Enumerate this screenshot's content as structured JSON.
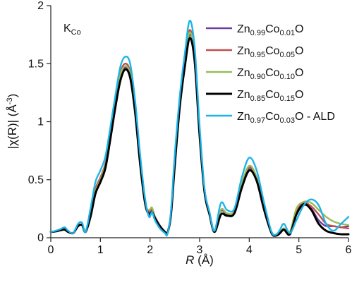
{
  "chart_data": {
    "type": "line",
    "annotation": {
      "main": "K",
      "sub": "Co"
    },
    "xlabel": {
      "italic": "R",
      "rest": " (Å)"
    },
    "ylabel": {
      "pre": "|χ(R)| (Å",
      "sup": "-3",
      "post": ")"
    },
    "xlim": [
      0,
      6
    ],
    "ylim": [
      0,
      2
    ],
    "xticks": [
      "0",
      "1",
      "2",
      "3",
      "4",
      "5",
      "6"
    ],
    "yticks": [
      "0",
      "0.5",
      "1",
      "1.5",
      "2"
    ],
    "grid": false,
    "legend_position": "top-right",
    "series": [
      {
        "legend": [
          {
            "t": "Zn"
          },
          {
            "t": "0.99",
            "sub": true
          },
          {
            "t": "Co"
          },
          {
            "t": "0.01",
            "sub": true
          },
          {
            "t": "O"
          }
        ],
        "color": "#6a3fa0",
        "x": [
          0,
          0.1,
          0.2,
          0.28,
          0.35,
          0.45,
          0.55,
          0.63,
          0.7,
          0.8,
          0.9,
          1.0,
          1.1,
          1.2,
          1.3,
          1.4,
          1.5,
          1.6,
          1.7,
          1.8,
          1.9,
          1.98,
          2.04,
          2.1,
          2.2,
          2.3,
          2.35,
          2.42,
          2.5,
          2.6,
          2.7,
          2.8,
          2.9,
          3.0,
          3.1,
          3.2,
          3.3,
          3.43,
          3.55,
          3.7,
          3.85,
          4.0,
          4.15,
          4.3,
          4.45,
          4.55,
          4.62,
          4.7,
          4.82,
          4.95,
          5.1,
          5.25,
          5.4,
          5.55,
          5.7,
          5.85,
          6.0
        ],
        "y": [
          0.05,
          0.055,
          0.065,
          0.07,
          0.05,
          0.04,
          0.1,
          0.11,
          0.05,
          0.2,
          0.4,
          0.5,
          0.62,
          0.88,
          1.15,
          1.38,
          1.47,
          1.4,
          1.1,
          0.65,
          0.3,
          0.21,
          0.24,
          0.18,
          0.1,
          0.05,
          0.04,
          0.2,
          0.65,
          1.15,
          1.5,
          1.75,
          1.55,
          0.9,
          0.4,
          0.2,
          0.05,
          0.23,
          0.2,
          0.22,
          0.45,
          0.6,
          0.5,
          0.25,
          0.05,
          0.02,
          0.04,
          0.08,
          0.03,
          0.2,
          0.28,
          0.25,
          0.15,
          0.1,
          0.1,
          0.09,
          0.1
        ]
      },
      {
        "legend": [
          {
            "t": "Zn"
          },
          {
            "t": "0.95",
            "sub": true
          },
          {
            "t": "Co"
          },
          {
            "t": "0.05",
            "sub": true
          },
          {
            "t": "O"
          }
        ],
        "color": "#c0504d",
        "x": [
          0,
          0.1,
          0.2,
          0.28,
          0.35,
          0.45,
          0.55,
          0.63,
          0.7,
          0.8,
          0.9,
          1.0,
          1.1,
          1.2,
          1.3,
          1.4,
          1.5,
          1.6,
          1.7,
          1.8,
          1.9,
          1.98,
          2.04,
          2.1,
          2.2,
          2.3,
          2.35,
          2.42,
          2.5,
          2.6,
          2.7,
          2.8,
          2.9,
          3.0,
          3.1,
          3.2,
          3.3,
          3.43,
          3.55,
          3.7,
          3.85,
          4.0,
          4.15,
          4.3,
          4.45,
          4.55,
          4.62,
          4.7,
          4.82,
          4.95,
          5.1,
          5.25,
          5.4,
          5.55,
          5.7,
          5.85,
          6.0
        ],
        "y": [
          0.05,
          0.055,
          0.065,
          0.075,
          0.05,
          0.04,
          0.1,
          0.11,
          0.05,
          0.2,
          0.42,
          0.52,
          0.64,
          0.9,
          1.18,
          1.42,
          1.5,
          1.43,
          1.12,
          0.66,
          0.3,
          0.23,
          0.25,
          0.18,
          0.1,
          0.05,
          0.04,
          0.2,
          0.66,
          1.17,
          1.53,
          1.79,
          1.58,
          0.92,
          0.4,
          0.2,
          0.05,
          0.24,
          0.21,
          0.22,
          0.46,
          0.61,
          0.51,
          0.26,
          0.05,
          0.02,
          0.04,
          0.08,
          0.04,
          0.22,
          0.3,
          0.27,
          0.2,
          0.12,
          0.1,
          0.09,
          0.08
        ]
      },
      {
        "legend": [
          {
            "t": "Zn"
          },
          {
            "t": "0.90",
            "sub": true
          },
          {
            "t": "Co"
          },
          {
            "t": "0.10",
            "sub": true
          },
          {
            "t": "O"
          }
        ],
        "color": "#9bbb59",
        "x": [
          0,
          0.1,
          0.2,
          0.28,
          0.35,
          0.45,
          0.55,
          0.63,
          0.7,
          0.8,
          0.9,
          1.0,
          1.1,
          1.2,
          1.3,
          1.4,
          1.5,
          1.6,
          1.7,
          1.8,
          1.9,
          1.98,
          2.04,
          2.1,
          2.2,
          2.3,
          2.35,
          2.42,
          2.5,
          2.6,
          2.7,
          2.8,
          2.9,
          3.0,
          3.1,
          3.2,
          3.3,
          3.43,
          3.55,
          3.7,
          3.85,
          4.0,
          4.15,
          4.3,
          4.45,
          4.55,
          4.62,
          4.7,
          4.82,
          4.95,
          5.1,
          5.25,
          5.4,
          5.55,
          5.7,
          5.85,
          6.0
        ],
        "y": [
          0.05,
          0.055,
          0.065,
          0.075,
          0.05,
          0.04,
          0.1,
          0.11,
          0.05,
          0.2,
          0.4,
          0.5,
          0.62,
          0.88,
          1.16,
          1.4,
          1.48,
          1.41,
          1.1,
          0.65,
          0.3,
          0.24,
          0.26,
          0.18,
          0.1,
          0.05,
          0.04,
          0.2,
          0.66,
          1.16,
          1.51,
          1.77,
          1.56,
          0.91,
          0.4,
          0.2,
          0.05,
          0.24,
          0.21,
          0.23,
          0.47,
          0.62,
          0.52,
          0.26,
          0.05,
          0.02,
          0.04,
          0.08,
          0.05,
          0.25,
          0.31,
          0.3,
          0.24,
          0.18,
          0.14,
          0.12,
          0.11
        ]
      },
      {
        "legend": [
          {
            "t": "Zn"
          },
          {
            "t": "0.85",
            "sub": true
          },
          {
            "t": "Co"
          },
          {
            "t": "0.15",
            "sub": true
          },
          {
            "t": "O"
          }
        ],
        "color": "#000000",
        "x": [
          0,
          0.1,
          0.2,
          0.28,
          0.35,
          0.45,
          0.55,
          0.63,
          0.7,
          0.8,
          0.9,
          1.0,
          1.1,
          1.2,
          1.3,
          1.4,
          1.5,
          1.6,
          1.7,
          1.8,
          1.9,
          1.98,
          2.04,
          2.1,
          2.2,
          2.3,
          2.35,
          2.42,
          2.5,
          2.6,
          2.7,
          2.8,
          2.9,
          3.0,
          3.1,
          3.2,
          3.3,
          3.43,
          3.55,
          3.7,
          3.85,
          4.0,
          4.15,
          4.3,
          4.45,
          4.55,
          4.62,
          4.7,
          4.82,
          4.95,
          5.1,
          5.25,
          5.4,
          5.55,
          5.7,
          5.85,
          6.0
        ],
        "y": [
          0.05,
          0.055,
          0.065,
          0.07,
          0.05,
          0.04,
          0.1,
          0.11,
          0.05,
          0.18,
          0.38,
          0.48,
          0.6,
          0.85,
          1.12,
          1.35,
          1.45,
          1.38,
          1.08,
          0.64,
          0.3,
          0.2,
          0.22,
          0.17,
          0.1,
          0.05,
          0.04,
          0.19,
          0.63,
          1.13,
          1.47,
          1.72,
          1.52,
          0.88,
          0.39,
          0.2,
          0.05,
          0.2,
          0.19,
          0.21,
          0.43,
          0.58,
          0.49,
          0.24,
          0.04,
          0.02,
          0.04,
          0.07,
          0.03,
          0.2,
          0.29,
          0.24,
          0.12,
          0.06,
          0.04,
          0.03,
          0.03
        ]
      },
      {
        "legend": [
          {
            "t": "Zn"
          },
          {
            "t": "0.97",
            "sub": true
          },
          {
            "t": "Co"
          },
          {
            "t": "0.03",
            "sub": true
          },
          {
            "t": "O - ALD"
          }
        ],
        "color": "#1fb4e8",
        "x": [
          0,
          0.1,
          0.2,
          0.28,
          0.35,
          0.45,
          0.55,
          0.63,
          0.7,
          0.8,
          0.9,
          1.0,
          1.1,
          1.2,
          1.3,
          1.4,
          1.5,
          1.6,
          1.7,
          1.8,
          1.9,
          1.98,
          2.04,
          2.1,
          2.2,
          2.3,
          2.35,
          2.42,
          2.5,
          2.6,
          2.7,
          2.8,
          2.9,
          3.0,
          3.1,
          3.2,
          3.3,
          3.43,
          3.55,
          3.7,
          3.85,
          4.0,
          4.15,
          4.3,
          4.45,
          4.55,
          4.62,
          4.7,
          4.82,
          4.95,
          5.1,
          5.25,
          5.4,
          5.55,
          5.7,
          5.85,
          6.0
        ],
        "y": [
          0.05,
          0.06,
          0.075,
          0.09,
          0.06,
          0.04,
          0.12,
          0.13,
          0.05,
          0.25,
          0.48,
          0.58,
          0.7,
          0.95,
          1.22,
          1.47,
          1.56,
          1.5,
          1.18,
          0.72,
          0.34,
          0.18,
          0.22,
          0.15,
          0.08,
          0.04,
          0.03,
          0.22,
          0.72,
          1.22,
          1.58,
          1.87,
          1.64,
          0.96,
          0.42,
          0.22,
          0.06,
          0.3,
          0.24,
          0.25,
          0.52,
          0.69,
          0.58,
          0.3,
          0.05,
          0.03,
          0.07,
          0.12,
          0.04,
          0.15,
          0.28,
          0.33,
          0.28,
          0.12,
          0.06,
          0.12,
          0.18
        ]
      }
    ]
  }
}
